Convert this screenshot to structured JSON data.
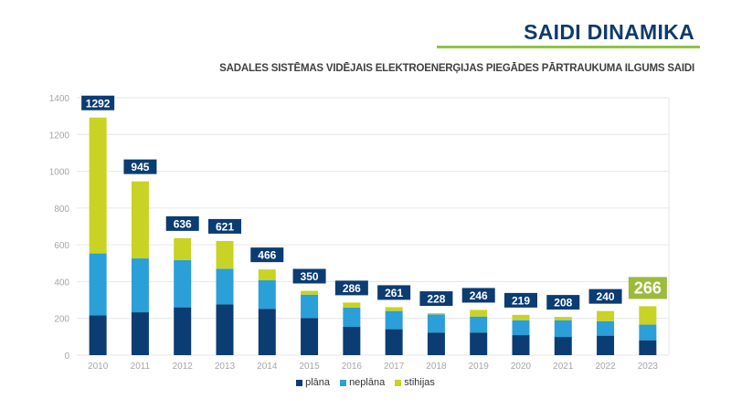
{
  "title": "SAIDI DINAMIKA",
  "colors": {
    "plana": "#0b3c72",
    "neplana": "#2a9fd8",
    "stihijas": "#c8d323",
    "label_box": "#0b3c72",
    "label_highlight": "#9cbb3b",
    "accent_rule": "#8dc63f"
  },
  "chart_data": {
    "type": "bar",
    "stacked": true,
    "title": "SADALES SISTĒMAS VIDĒJAIS ELEKTROENERĢIJAS PIEGĀDES PĀRTRAUKUMA ILGUMS SAIDI",
    "categories": [
      "2010",
      "2011",
      "2012",
      "2013",
      "2014",
      "2015",
      "2016",
      "2017",
      "2018",
      "2019",
      "2020",
      "2021",
      "2022",
      "2023"
    ],
    "series": [
      {
        "name": "plāna",
        "values": [
          217,
          233,
          260,
          276,
          252,
          202,
          154,
          141,
          123,
          123,
          109,
          99,
          106,
          81
        ]
      },
      {
        "name": "neplāna",
        "values": [
          336,
          293,
          257,
          194,
          155,
          127,
          104,
          99,
          99,
          87,
          81,
          91,
          79,
          85
        ]
      },
      {
        "name": "stihijas",
        "values": [
          739,
          419,
          119,
          151,
          59,
          21,
          28,
          21,
          6,
          36,
          29,
          18,
          55,
          100
        ]
      }
    ],
    "totals": [
      "1292",
      "945",
      "636",
      "621",
      "466",
      "350",
      "286",
      "261",
      "228",
      "246",
      "219",
      "208",
      "240",
      "266"
    ],
    "highlight_category": "2023",
    "ylim": [
      0,
      1400
    ],
    "yticks": [
      "0",
      "200",
      "400",
      "600",
      "800",
      "1000",
      "1200",
      "1400"
    ],
    "grid": true,
    "legend": "bottom"
  }
}
